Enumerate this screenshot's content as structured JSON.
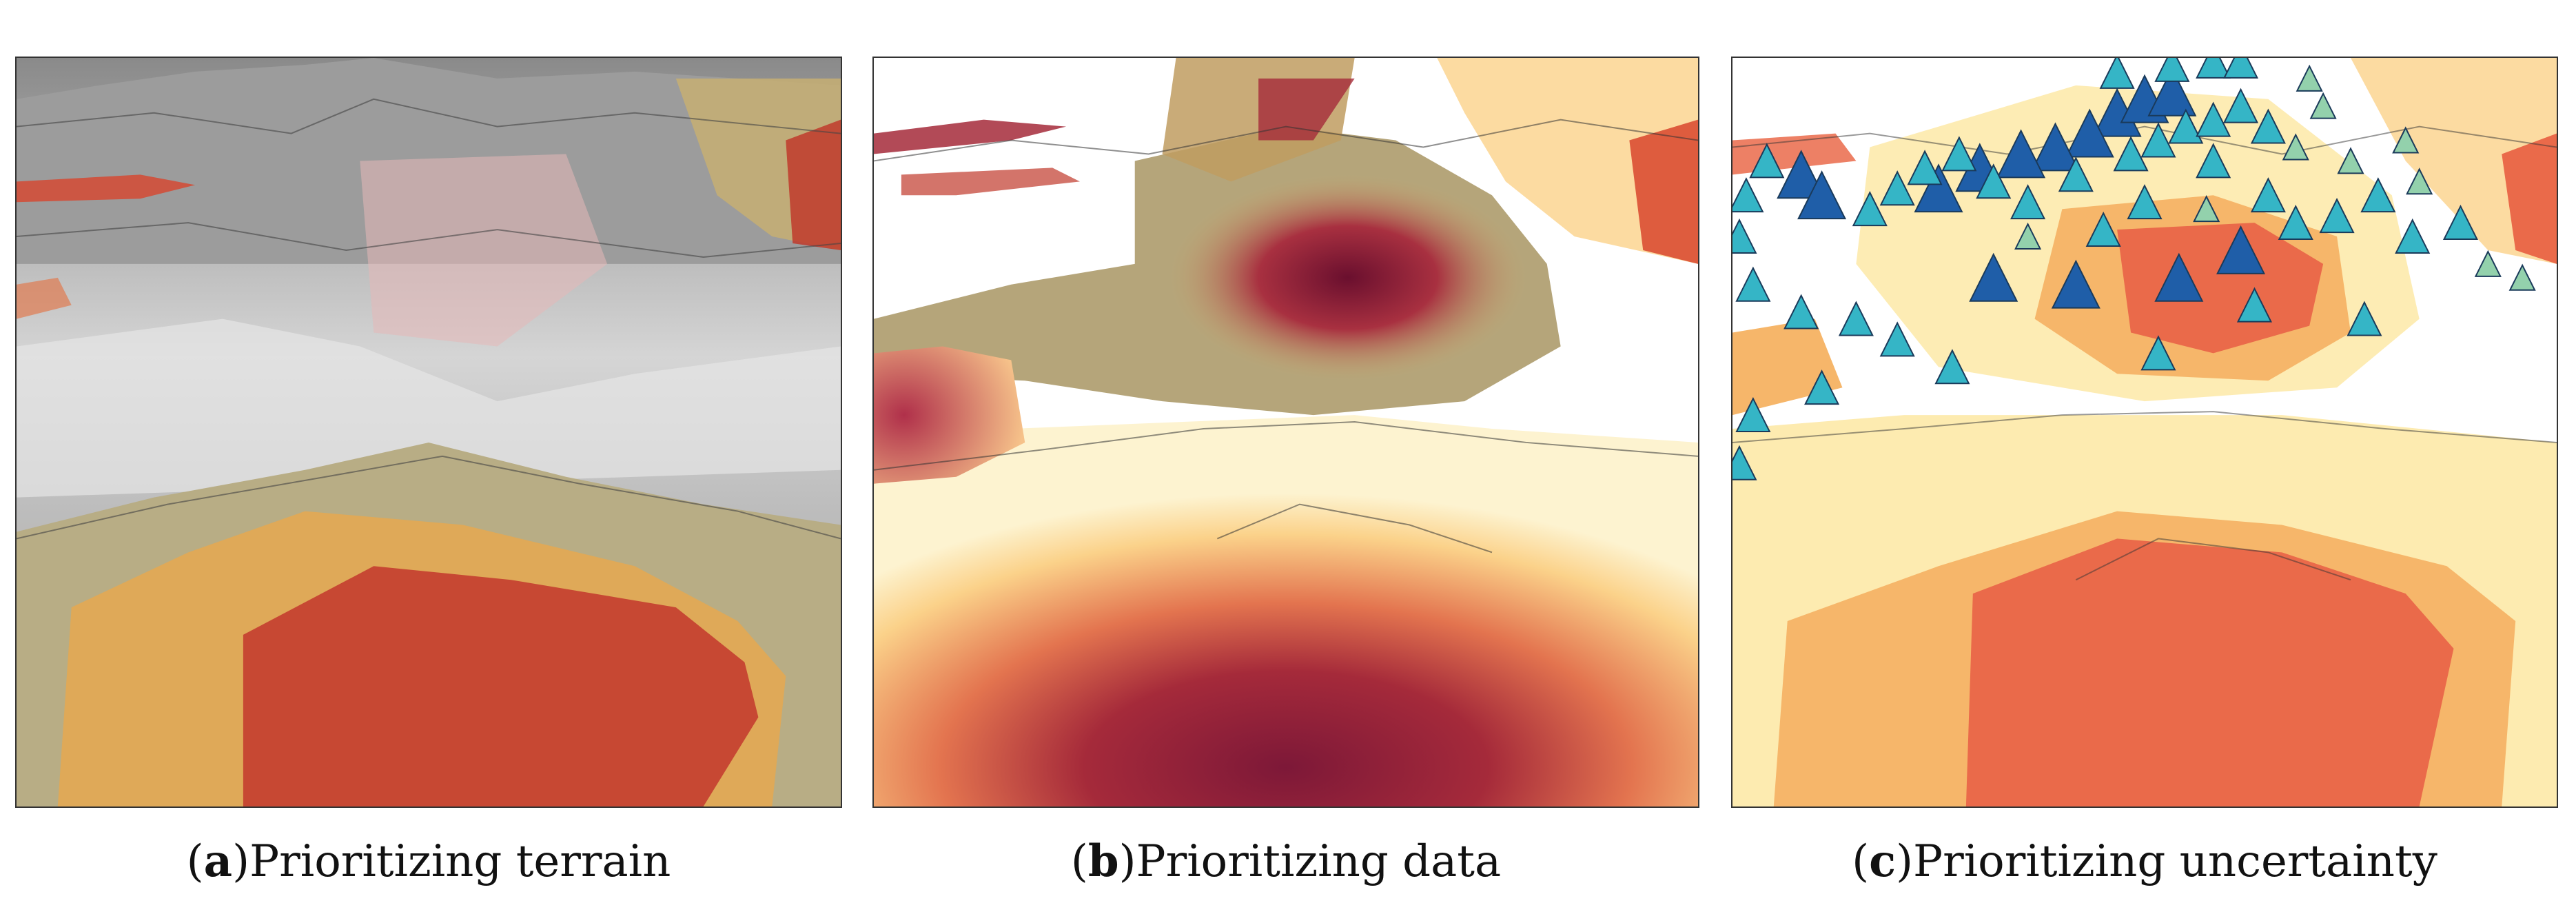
{
  "panels": [
    {
      "letter": "a",
      "caption": "Prioritizing terrain"
    },
    {
      "letter": "b",
      "caption": "Prioritizing data"
    },
    {
      "letter": "c",
      "caption": "Prioritizing uncertainty"
    }
  ],
  "colors": {
    "dark_red": "#7d1838",
    "red": "#d8452d",
    "orange_red": "#ea6a4a",
    "orange": "#f6a85a",
    "light_orange": "#fbd28a",
    "pale_yellow": "#fdebb0",
    "terrain_gray": "#9a9a9a",
    "marker_dark_blue": "#1f5ea8",
    "marker_teal": "#35b5c6",
    "marker_light_green": "#93d1ac"
  }
}
